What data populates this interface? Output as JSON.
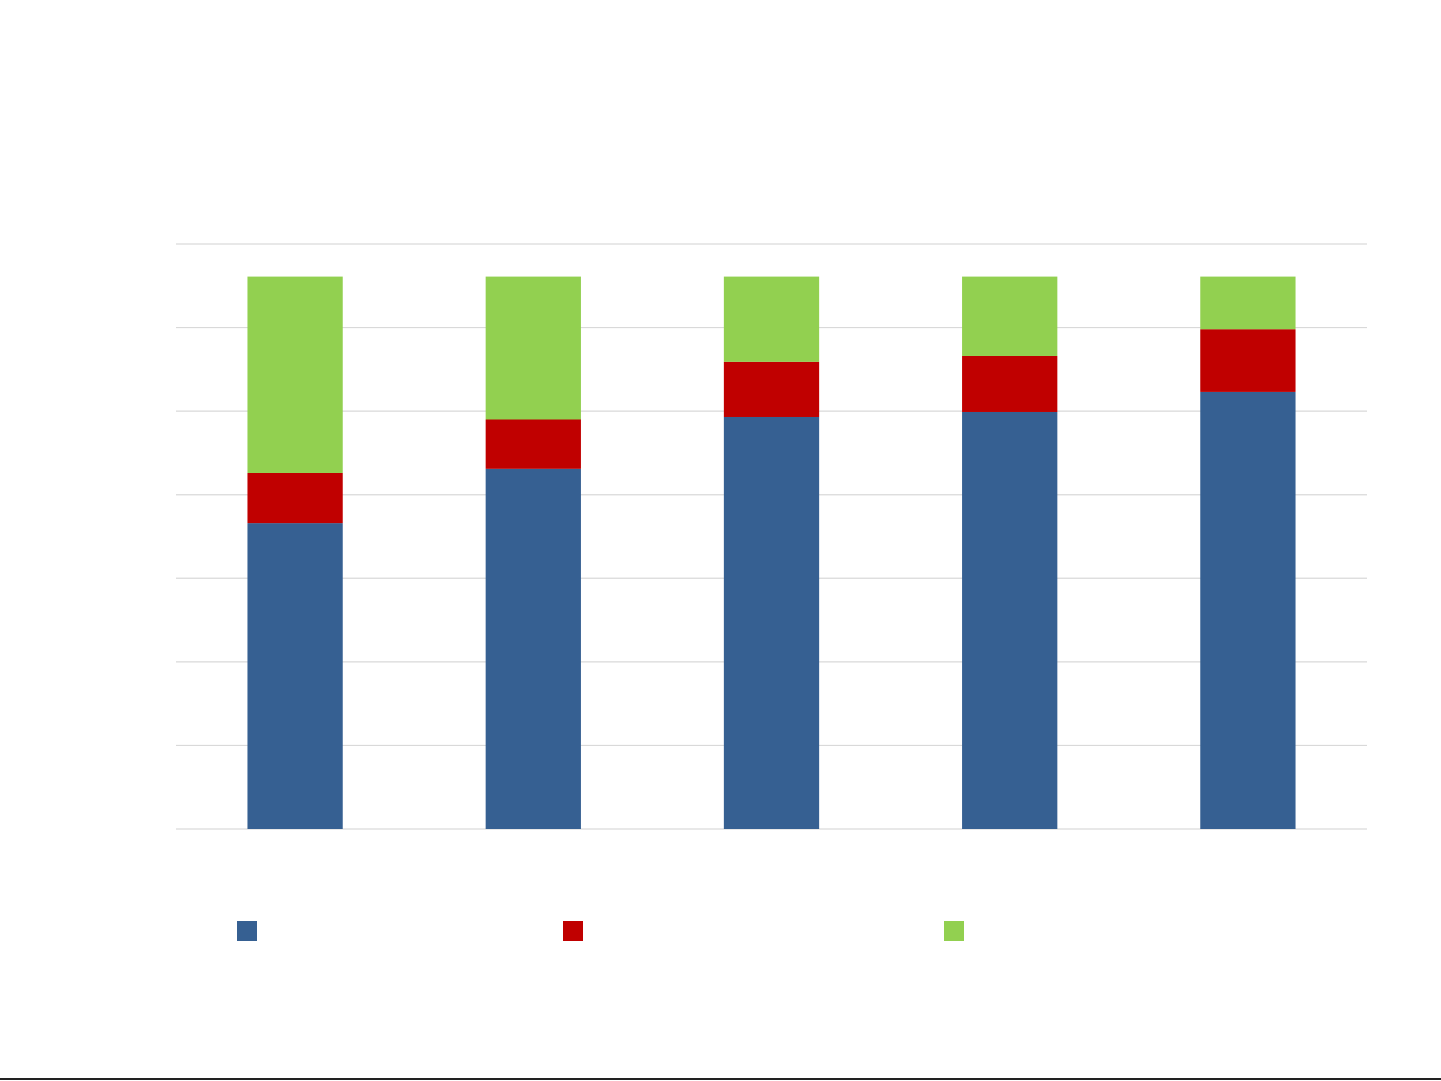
{
  "chart_data": {
    "type": "bar",
    "stacked": true,
    "title": "",
    "xlabel": "",
    "ylabel": "",
    "categories": [
      "",
      "",
      "",
      "",
      ""
    ],
    "ylim": [
      0,
      7
    ],
    "grid": true,
    "legend_position": "bottom",
    "series": [
      {
        "values": [
          3.66,
          4.31,
          4.93,
          4.99,
          5.23
        ],
        "color": "#366092"
      },
      {
        "values": [
          0.6,
          0.59,
          0.66,
          0.67,
          0.75
        ],
        "color": "#C00000"
      },
      {
        "values": [
          2.35,
          1.71,
          1.02,
          0.95,
          0.63
        ],
        "color": "#92D050"
      }
    ]
  }
}
